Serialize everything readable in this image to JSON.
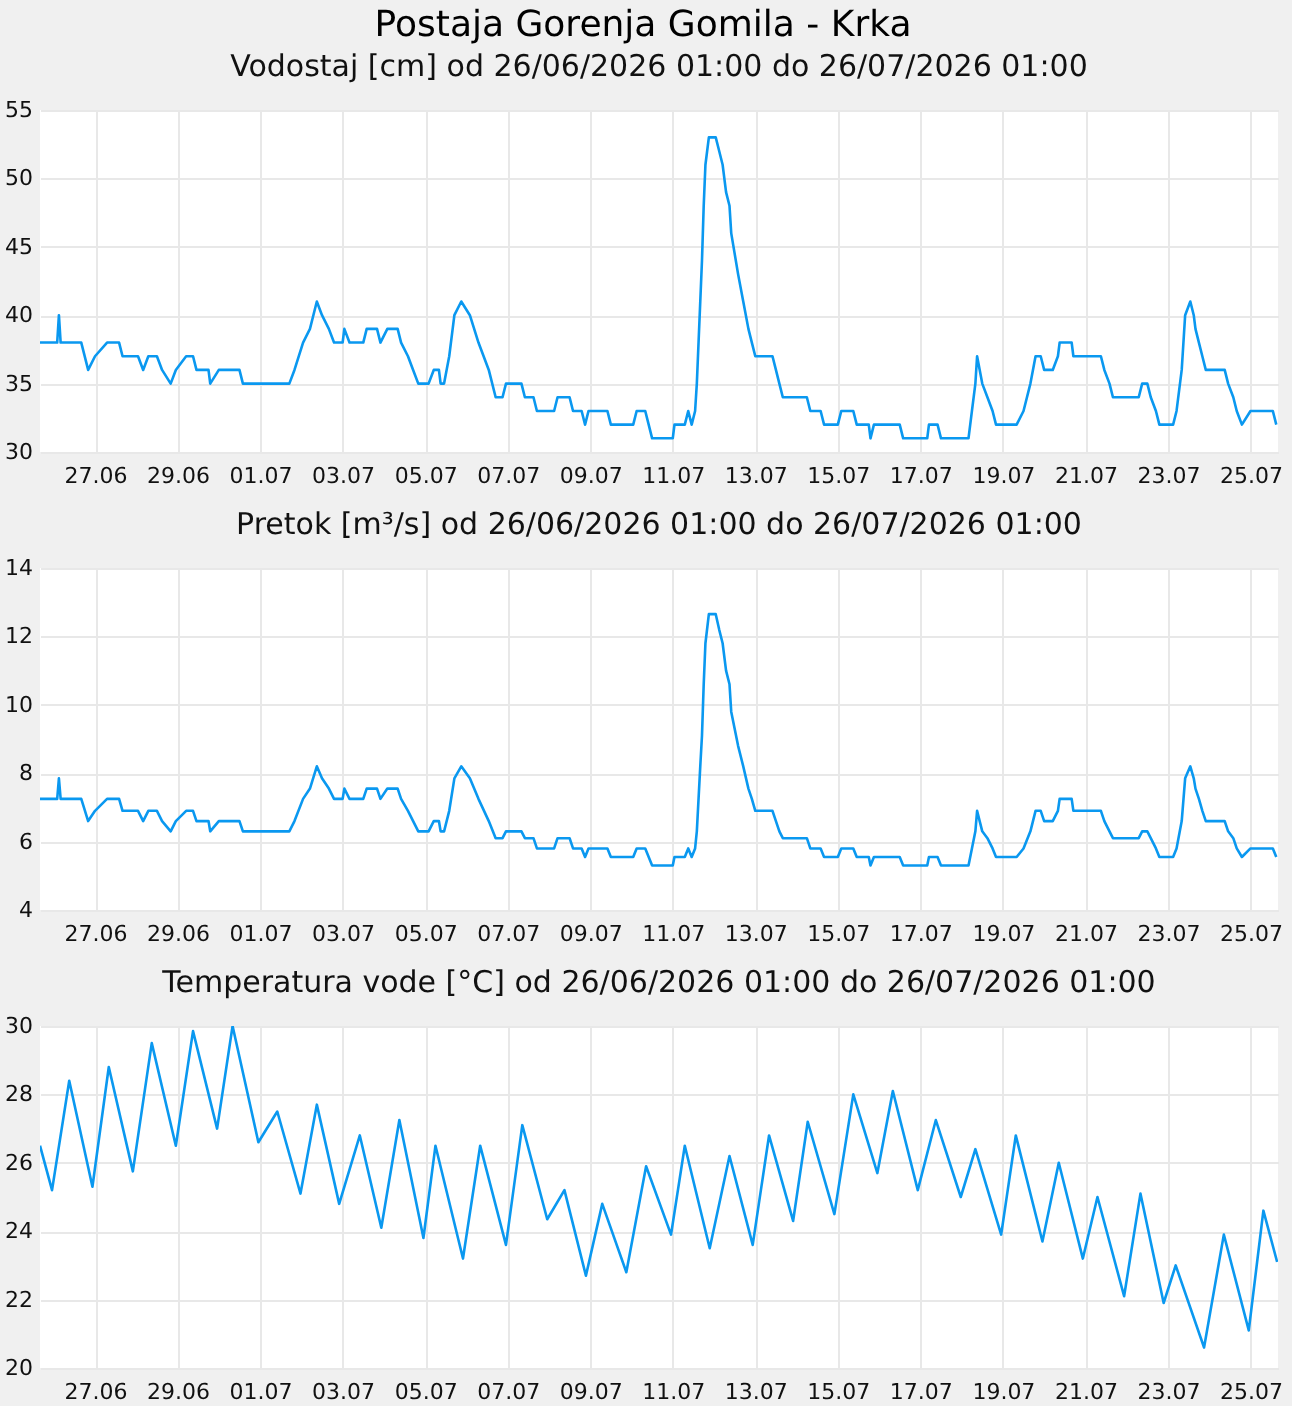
{
  "chart_data": [
    {
      "type": "line",
      "title": "Postaja Gorenja Gomila - Krka",
      "subtitle": "Vodostaj [cm] od 26/06/2026 01:00 do 26/07/2026 01:00",
      "grid": true,
      "xlim": [
        "2026-06-25T16:00",
        "2026-07-25T16:00"
      ],
      "ylim": [
        30,
        55
      ],
      "yticks": [
        30,
        35,
        40,
        45,
        50,
        55
      ],
      "xticks": [
        {
          "value": "2026-06-27",
          "label": "27.06"
        },
        {
          "value": "2026-06-29",
          "label": "29.06"
        },
        {
          "value": "2026-07-01",
          "label": "01.07"
        },
        {
          "value": "2026-07-03",
          "label": "03.07"
        },
        {
          "value": "2026-07-05",
          "label": "05.07"
        },
        {
          "value": "2026-07-07",
          "label": "07.07"
        },
        {
          "value": "2026-07-09",
          "label": "09.07"
        },
        {
          "value": "2026-07-11",
          "label": "11.07"
        },
        {
          "value": "2026-07-13",
          "label": "13.07"
        },
        {
          "value": "2026-07-15",
          "label": "15.07"
        },
        {
          "value": "2026-07-17",
          "label": "17.07"
        },
        {
          "value": "2026-07-19",
          "label": "19.07"
        },
        {
          "value": "2026-07-21",
          "label": "21.07"
        },
        {
          "value": "2026-07-23",
          "label": "23.07"
        },
        {
          "value": "2026-07-25",
          "label": "25.07"
        }
      ],
      "x": [
        "2026-06-25T16:00",
        "2026-06-26T02:00",
        "2026-06-26T03:00",
        "2026-06-26T04:00",
        "2026-06-26T16:00",
        "2026-06-26T20:00",
        "2026-06-27T00:00",
        "2026-06-27T07:00",
        "2026-06-27T14:00",
        "2026-06-27T16:00",
        "2026-06-28T01:00",
        "2026-06-28T04:00",
        "2026-06-28T07:00",
        "2026-06-28T12:00",
        "2026-06-28T15:00",
        "2026-06-28T20:00",
        "2026-06-28T23:00",
        "2026-06-29T05:00",
        "2026-06-29T09:00",
        "2026-06-29T11:00",
        "2026-06-29T18:00",
        "2026-06-29T19:00",
        "2026-06-30T00:00",
        "2026-06-30T12:00",
        "2026-06-30T14:00",
        "2026-07-01T17:00",
        "2026-07-01T20:00",
        "2026-07-02T01:00",
        "2026-07-02T05:00",
        "2026-07-02T09:00",
        "2026-07-02T12:00",
        "2026-07-02T16:00",
        "2026-07-02T19:00",
        "2026-07-03T00:00",
        "2026-07-03T01:00",
        "2026-07-03T04:00",
        "2026-07-03T12:00",
        "2026-07-03T14:00",
        "2026-07-03T20:00",
        "2026-07-03T22:00",
        "2026-07-04T02:00",
        "2026-07-04T08:00",
        "2026-07-04T10:00",
        "2026-07-04T14:00",
        "2026-07-04T17:00",
        "2026-07-04T20:00",
        "2026-07-05T02:00",
        "2026-07-05T05:00",
        "2026-07-05T08:00",
        "2026-07-05T09:00",
        "2026-07-05T11:00",
        "2026-07-05T14:00",
        "2026-07-05T17:00",
        "2026-07-05T21:00",
        "2026-07-06T02:00",
        "2026-07-06T07:00",
        "2026-07-06T13:00",
        "2026-07-06T17:00",
        "2026-07-06T21:00",
        "2026-07-06T23:00",
        "2026-07-07T08:00",
        "2026-07-07T10:00",
        "2026-07-07T15:00",
        "2026-07-07T17:00",
        "2026-07-08T03:00",
        "2026-07-08T05:00",
        "2026-07-08T12:00",
        "2026-07-08T14:00",
        "2026-07-08T19:00",
        "2026-07-08T21:00",
        "2026-07-08T23:00",
        "2026-07-09T10:00",
        "2026-07-09T12:00",
        "2026-07-10T01:00",
        "2026-07-10T03:00",
        "2026-07-10T08:00",
        "2026-07-10T10:00",
        "2026-07-10T12:00",
        "2026-07-11T00:00",
        "2026-07-11T01:00",
        "2026-07-11T07:00",
        "2026-07-11T09:00",
        "2026-07-11T11:00",
        "2026-07-11T13:00",
        "2026-07-11T14:00",
        "2026-07-11T15:00",
        "2026-07-11T16:00",
        "2026-07-11T17:00",
        "2026-07-11T18:00",
        "2026-07-11T19:00",
        "2026-07-11T21:00",
        "2026-07-12T01:00",
        "2026-07-12T03:00",
        "2026-07-12T05:00",
        "2026-07-12T07:00",
        "2026-07-12T09:00",
        "2026-07-12T10:00",
        "2026-07-12T14:00",
        "2026-07-12T17:00",
        "2026-07-12T20:00",
        "2026-07-12T22:00",
        "2026-07-13T00:00",
        "2026-07-13T10:00",
        "2026-07-13T12:00",
        "2026-07-13T14:00",
        "2026-07-13T16:00",
        "2026-07-14T06:00",
        "2026-07-14T08:00",
        "2026-07-14T14:00",
        "2026-07-14T16:00",
        "2026-07-15T00:00",
        "2026-07-15T02:00",
        "2026-07-15T09:00",
        "2026-07-15T11:00",
        "2026-07-15T18:00",
        "2026-07-15T19:00",
        "2026-07-15T21:00",
        "2026-07-16T12:00",
        "2026-07-16T14:00",
        "2026-07-17T04:00",
        "2026-07-17T05:00",
        "2026-07-17T10:00",
        "2026-07-17T12:00",
        "2026-07-18T04:00",
        "2026-07-18T06:00",
        "2026-07-18T08:00",
        "2026-07-18T09:00",
        "2026-07-18T12:00",
        "2026-07-18T15:00",
        "2026-07-18T18:00",
        "2026-07-18T20:00",
        "2026-07-19T08:00",
        "2026-07-19T12:00",
        "2026-07-19T16:00",
        "2026-07-19T19:00",
        "2026-07-19T22:00",
        "2026-07-20T00:00",
        "2026-07-20T05:00",
        "2026-07-20T08:00",
        "2026-07-20T09:00",
        "2026-07-20T16:00",
        "2026-07-20T17:00",
        "2026-07-21T09:00",
        "2026-07-21T11:00",
        "2026-07-21T14:00",
        "2026-07-21T16:00",
        "2026-07-22T07:00",
        "2026-07-22T09:00",
        "2026-07-22T12:00",
        "2026-07-22T14:00",
        "2026-07-22T17:00",
        "2026-07-22T19:00",
        "2026-07-23T03:00",
        "2026-07-23T05:00",
        "2026-07-23T08:00",
        "2026-07-23T10:00",
        "2026-07-23T13:00",
        "2026-07-23T15:00",
        "2026-07-23T16:00",
        "2026-07-23T18:00",
        "2026-07-23T20:00",
        "2026-07-23T22:00",
        "2026-07-24T09:00",
        "2026-07-24T11:00",
        "2026-07-24T14:00",
        "2026-07-24T16:00",
        "2026-07-24T19:00",
        "2026-07-25T00:00",
        "2026-07-25T13:00",
        "2026-07-25T15:00"
      ],
      "series": [
        {
          "color": "#0a98f0",
          "values": [
            38,
            38,
            40,
            38,
            38,
            36,
            37,
            38,
            38,
            37,
            37,
            36,
            37,
            37,
            36,
            35,
            36,
            37,
            37,
            36,
            36,
            35,
            36,
            36,
            35,
            35,
            36,
            38,
            39,
            41,
            40,
            39,
            38,
            38,
            39,
            38,
            38,
            39,
            39,
            38,
            39,
            39,
            38,
            37,
            36,
            35,
            35,
            36,
            36,
            35,
            35,
            37,
            40,
            41,
            40,
            38,
            36,
            34,
            34,
            35,
            35,
            34,
            34,
            33,
            33,
            34,
            34,
            33,
            33,
            32,
            33,
            33,
            32,
            32,
            33,
            33,
            32,
            31,
            31,
            32,
            32,
            33,
            32,
            33,
            35,
            38,
            41,
            44,
            48,
            51,
            53,
            53,
            52,
            51,
            49,
            48,
            46,
            43,
            41,
            39,
            38,
            37,
            37,
            36,
            35,
            34,
            34,
            33,
            33,
            32,
            32,
            33,
            33,
            32,
            32,
            31,
            32,
            32,
            31,
            31,
            32,
            32,
            31,
            31,
            33,
            35,
            37,
            35,
            34,
            33,
            32,
            32,
            33,
            35,
            37,
            37,
            36,
            36,
            37,
            38,
            38,
            37,
            37,
            36,
            35,
            34,
            34,
            35,
            35,
            34,
            33,
            32,
            32,
            33,
            36,
            40,
            41,
            40,
            39,
            38,
            37,
            36,
            36,
            35,
            34,
            33,
            32,
            33,
            33,
            32
          ]
        }
      ]
    },
    {
      "type": "line",
      "title": "Pretok [m³/s] od 26/06/2026 01:00 do 26/07/2026 01:00",
      "grid": true,
      "xlim": [
        "2026-06-25T16:00",
        "2026-07-25T16:00"
      ],
      "ylim": [
        4,
        14
      ],
      "yticks": [
        4,
        6,
        8,
        10,
        12,
        14
      ],
      "xticks": [
        {
          "value": "2026-06-27",
          "label": "27.06"
        },
        {
          "value": "2026-06-29",
          "label": "29.06"
        },
        {
          "value": "2026-07-01",
          "label": "01.07"
        },
        {
          "value": "2026-07-03",
          "label": "03.07"
        },
        {
          "value": "2026-07-05",
          "label": "05.07"
        },
        {
          "value": "2026-07-07",
          "label": "07.07"
        },
        {
          "value": "2026-07-09",
          "label": "09.07"
        },
        {
          "value": "2026-07-11",
          "label": "11.07"
        },
        {
          "value": "2026-07-13",
          "label": "13.07"
        },
        {
          "value": "2026-07-15",
          "label": "15.07"
        },
        {
          "value": "2026-07-17",
          "label": "17.07"
        },
        {
          "value": "2026-07-19",
          "label": "19.07"
        },
        {
          "value": "2026-07-21",
          "label": "21.07"
        },
        {
          "value": "2026-07-23",
          "label": "23.07"
        },
        {
          "value": "2026-07-25",
          "label": "25.07"
        }
      ],
      "x": [
        "2026-06-25T16:00",
        "2026-06-26T02:00",
        "2026-06-26T03:00",
        "2026-06-26T04:00",
        "2026-06-26T16:00",
        "2026-06-26T20:00",
        "2026-06-27T00:00",
        "2026-06-27T07:00",
        "2026-06-27T14:00",
        "2026-06-27T16:00",
        "2026-06-28T01:00",
        "2026-06-28T04:00",
        "2026-06-28T07:00",
        "2026-06-28T12:00",
        "2026-06-28T15:00",
        "2026-06-28T20:00",
        "2026-06-28T23:00",
        "2026-06-29T05:00",
        "2026-06-29T09:00",
        "2026-06-29T11:00",
        "2026-06-29T18:00",
        "2026-06-29T19:00",
        "2026-06-30T00:00",
        "2026-06-30T12:00",
        "2026-06-30T14:00",
        "2026-07-01T17:00",
        "2026-07-01T20:00",
        "2026-07-02T01:00",
        "2026-07-02T05:00",
        "2026-07-02T09:00",
        "2026-07-02T12:00",
        "2026-07-02T16:00",
        "2026-07-02T19:00",
        "2026-07-03T00:00",
        "2026-07-03T01:00",
        "2026-07-03T04:00",
        "2026-07-03T12:00",
        "2026-07-03T14:00",
        "2026-07-03T20:00",
        "2026-07-03T22:00",
        "2026-07-04T02:00",
        "2026-07-04T08:00",
        "2026-07-04T10:00",
        "2026-07-04T14:00",
        "2026-07-04T17:00",
        "2026-07-04T20:00",
        "2026-07-05T02:00",
        "2026-07-05T05:00",
        "2026-07-05T08:00",
        "2026-07-05T09:00",
        "2026-07-05T11:00",
        "2026-07-05T14:00",
        "2026-07-05T17:00",
        "2026-07-05T21:00",
        "2026-07-06T02:00",
        "2026-07-06T07:00",
        "2026-07-06T13:00",
        "2026-07-06T17:00",
        "2026-07-06T21:00",
        "2026-07-06T23:00",
        "2026-07-07T08:00",
        "2026-07-07T10:00",
        "2026-07-07T15:00",
        "2026-07-07T17:00",
        "2026-07-08T03:00",
        "2026-07-08T05:00",
        "2026-07-08T12:00",
        "2026-07-08T14:00",
        "2026-07-08T19:00",
        "2026-07-08T21:00",
        "2026-07-08T23:00",
        "2026-07-09T10:00",
        "2026-07-09T12:00",
        "2026-07-10T01:00",
        "2026-07-10T03:00",
        "2026-07-10T08:00",
        "2026-07-10T10:00",
        "2026-07-10T12:00",
        "2026-07-11T00:00",
        "2026-07-11T01:00",
        "2026-07-11T07:00",
        "2026-07-11T09:00",
        "2026-07-11T11:00",
        "2026-07-11T13:00",
        "2026-07-11T14:00",
        "2026-07-11T15:00",
        "2026-07-11T16:00",
        "2026-07-11T17:00",
        "2026-07-11T18:00",
        "2026-07-11T19:00",
        "2026-07-11T21:00",
        "2026-07-12T01:00",
        "2026-07-12T03:00",
        "2026-07-12T05:00",
        "2026-07-12T07:00",
        "2026-07-12T09:00",
        "2026-07-12T10:00",
        "2026-07-12T14:00",
        "2026-07-12T17:00",
        "2026-07-12T20:00",
        "2026-07-12T22:00",
        "2026-07-13T00:00",
        "2026-07-13T10:00",
        "2026-07-13T12:00",
        "2026-07-13T14:00",
        "2026-07-13T16:00",
        "2026-07-14T06:00",
        "2026-07-14T08:00",
        "2026-07-14T14:00",
        "2026-07-14T16:00",
        "2026-07-15T00:00",
        "2026-07-15T02:00",
        "2026-07-15T09:00",
        "2026-07-15T11:00",
        "2026-07-15T18:00",
        "2026-07-15T19:00",
        "2026-07-15T21:00",
        "2026-07-16T12:00",
        "2026-07-16T14:00",
        "2026-07-17T04:00",
        "2026-07-17T05:00",
        "2026-07-17T10:00",
        "2026-07-17T12:00",
        "2026-07-18T04:00",
        "2026-07-18T06:00",
        "2026-07-18T08:00",
        "2026-07-18T09:00",
        "2026-07-18T12:00",
        "2026-07-18T15:00",
        "2026-07-18T18:00",
        "2026-07-18T20:00",
        "2026-07-19T08:00",
        "2026-07-19T12:00",
        "2026-07-19T16:00",
        "2026-07-19T19:00",
        "2026-07-19T22:00",
        "2026-07-20T00:00",
        "2026-07-20T05:00",
        "2026-07-20T08:00",
        "2026-07-20T09:00",
        "2026-07-20T16:00",
        "2026-07-20T17:00",
        "2026-07-21T09:00",
        "2026-07-21T11:00",
        "2026-07-21T14:00",
        "2026-07-21T16:00",
        "2026-07-22T07:00",
        "2026-07-22T09:00",
        "2026-07-22T12:00",
        "2026-07-22T14:00",
        "2026-07-22T17:00",
        "2026-07-22T19:00",
        "2026-07-23T03:00",
        "2026-07-23T05:00",
        "2026-07-23T08:00",
        "2026-07-23T10:00",
        "2026-07-23T13:00",
        "2026-07-23T15:00",
        "2026-07-23T16:00",
        "2026-07-23T18:00",
        "2026-07-23T20:00",
        "2026-07-23T22:00",
        "2026-07-24T09:00",
        "2026-07-24T11:00",
        "2026-07-24T14:00",
        "2026-07-24T16:00",
        "2026-07-24T19:00",
        "2026-07-25T00:00",
        "2026-07-25T13:00",
        "2026-07-25T15:00"
      ],
      "series": [
        {
          "color": "#0a98f0",
          "values": [
            7.25,
            7.25,
            7.85,
            7.25,
            7.25,
            6.6,
            6.9,
            7.25,
            7.25,
            6.9,
            6.9,
            6.6,
            6.9,
            6.9,
            6.6,
            6.3,
            6.6,
            6.9,
            6.9,
            6.6,
            6.6,
            6.3,
            6.6,
            6.6,
            6.3,
            6.3,
            6.6,
            7.25,
            7.55,
            8.2,
            7.85,
            7.55,
            7.25,
            7.25,
            7.55,
            7.25,
            7.25,
            7.55,
            7.55,
            7.25,
            7.55,
            7.55,
            7.25,
            6.9,
            6.6,
            6.3,
            6.3,
            6.6,
            6.6,
            6.3,
            6.3,
            6.9,
            7.85,
            8.2,
            7.85,
            7.25,
            6.6,
            6.1,
            6.1,
            6.3,
            6.3,
            6.1,
            6.1,
            5.8,
            5.8,
            6.1,
            6.1,
            5.8,
            5.8,
            5.55,
            5.8,
            5.8,
            5.55,
            5.55,
            5.8,
            5.8,
            5.55,
            5.3,
            5.3,
            5.55,
            5.55,
            5.8,
            5.55,
            5.8,
            6.3,
            7.25,
            8.2,
            9.1,
            10.6,
            11.8,
            12.65,
            12.65,
            12.2,
            11.8,
            11.0,
            10.6,
            9.8,
            8.8,
            8.2,
            7.55,
            7.25,
            6.9,
            6.9,
            6.6,
            6.3,
            6.1,
            6.1,
            5.8,
            5.8,
            5.55,
            5.55,
            5.8,
            5.8,
            5.55,
            5.55,
            5.3,
            5.55,
            5.55,
            5.3,
            5.3,
            5.55,
            5.55,
            5.3,
            5.3,
            5.8,
            6.3,
            6.9,
            6.3,
            6.1,
            5.8,
            5.55,
            5.55,
            5.8,
            6.3,
            6.9,
            6.9,
            6.6,
            6.6,
            6.9,
            7.25,
            7.25,
            6.9,
            6.9,
            6.6,
            6.3,
            6.1,
            6.1,
            6.3,
            6.3,
            6.1,
            5.8,
            5.55,
            5.55,
            5.8,
            6.6,
            7.85,
            8.2,
            7.85,
            7.55,
            7.25,
            6.9,
            6.6,
            6.6,
            6.3,
            6.1,
            5.8,
            5.55,
            5.8,
            5.8,
            5.55
          ]
        }
      ]
    },
    {
      "type": "line",
      "title": "Temperatura vode [°C] od 26/06/2026 01:00 do 26/07/2026 01:00",
      "grid": true,
      "xlim": [
        "2026-06-25T16:00",
        "2026-07-25T16:00"
      ],
      "ylim": [
        20,
        30
      ],
      "yticks": [
        20,
        22,
        24,
        26,
        28,
        30
      ],
      "xticks": [
        {
          "value": "2026-06-27",
          "label": "27.06"
        },
        {
          "value": "2026-06-29",
          "label": "29.06"
        },
        {
          "value": "2026-07-01",
          "label": "01.07"
        },
        {
          "value": "2026-07-03",
          "label": "03.07"
        },
        {
          "value": "2026-07-05",
          "label": "05.07"
        },
        {
          "value": "2026-07-07",
          "label": "07.07"
        },
        {
          "value": "2026-07-09",
          "label": "09.07"
        },
        {
          "value": "2026-07-11",
          "label": "11.07"
        },
        {
          "value": "2026-07-13",
          "label": "13.07"
        },
        {
          "value": "2026-07-15",
          "label": "15.07"
        },
        {
          "value": "2026-07-17",
          "label": "17.07"
        },
        {
          "value": "2026-07-19",
          "label": "19.07"
        },
        {
          "value": "2026-07-21",
          "label": "21.07"
        },
        {
          "value": "2026-07-23",
          "label": "23.07"
        },
        {
          "value": "2026-07-25",
          "label": "25.07"
        }
      ],
      "x": [
        "2026-06-25T16:00",
        "2026-06-25T23:00",
        "2026-06-26T09:00",
        "2026-06-26T22:30",
        "2026-06-27T08:00",
        "2026-06-27T22:00",
        "2026-06-28T09:00",
        "2026-06-28T23:00",
        "2026-06-29T09:00",
        "2026-06-29T23:00",
        "2026-06-30T08:00",
        "2026-06-30T23:00",
        "2026-07-01T10:00",
        "2026-07-01T23:30",
        "2026-07-02T09:00",
        "2026-07-02T22:00",
        "2026-07-03T10:00",
        "2026-07-03T22:30",
        "2026-07-04T09:00",
        "2026-07-04T23:00",
        "2026-07-05T06:00",
        "2026-07-05T22:00",
        "2026-07-06T08:00",
        "2026-07-06T23:00",
        "2026-07-07T08:30",
        "2026-07-07T23:00",
        "2026-07-08T09:00",
        "2026-07-08T21:30",
        "2026-07-09T07:00",
        "2026-07-09T21:00",
        "2026-07-10T08:30",
        "2026-07-10T23:00",
        "2026-07-11T07:00",
        "2026-07-11T21:30",
        "2026-07-12T09:00",
        "2026-07-12T22:30",
        "2026-07-13T08:00",
        "2026-07-13T22:00",
        "2026-07-14T06:30",
        "2026-07-14T22:00",
        "2026-07-15T09:00",
        "2026-07-15T23:00",
        "2026-07-16T08:00",
        "2026-07-16T22:30",
        "2026-07-17T09:00",
        "2026-07-17T23:30",
        "2026-07-18T08:00",
        "2026-07-18T23:00",
        "2026-07-19T07:30",
        "2026-07-19T23:00",
        "2026-07-20T08:30",
        "2026-07-20T22:30",
        "2026-07-21T07:00",
        "2026-07-21T22:30",
        "2026-07-22T08:00",
        "2026-07-22T21:30",
        "2026-07-23T04:30",
        "2026-07-23T21:00",
        "2026-07-24T08:30",
        "2026-07-24T23:00",
        "2026-07-25T07:30",
        "2026-07-25T15:30"
      ],
      "series": [
        {
          "color": "#0a98f0",
          "values": [
            26.5,
            25.2,
            28.4,
            25.3,
            28.8,
            25.75,
            29.5,
            26.5,
            29.85,
            27.0,
            30.0,
            26.6,
            27.5,
            25.1,
            27.7,
            24.8,
            26.8,
            24.1,
            27.25,
            23.8,
            26.5,
            23.2,
            26.5,
            23.6,
            27.1,
            24.35,
            25.2,
            22.7,
            24.8,
            22.8,
            25.9,
            23.9,
            26.5,
            23.5,
            26.2,
            23.6,
            26.8,
            24.3,
            27.2,
            24.5,
            28.0,
            25.7,
            28.1,
            25.2,
            27.25,
            25.0,
            26.4,
            23.9,
            26.8,
            23.7,
            26.0,
            23.2,
            25.0,
            22.1,
            25.1,
            21.9,
            23.0,
            20.6,
            23.9,
            21.1,
            24.6,
            23.1
          ]
        }
      ]
    }
  ]
}
